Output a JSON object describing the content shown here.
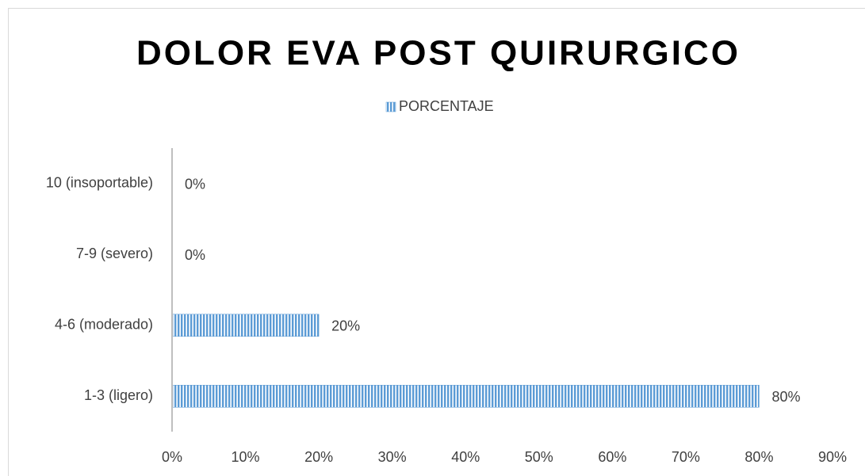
{
  "chart_data": {
    "type": "bar",
    "orientation": "horizontal",
    "title": "DOLOR EVA POST QUIRURGICO",
    "categories": [
      "1-3 (ligero)",
      "4-6 (moderado)",
      "7-9 (severo)",
      "10 (insoportable)"
    ],
    "series": [
      {
        "name": "PORCENTAJE",
        "color": "#5b9bd5",
        "values": [
          80,
          20,
          0,
          0
        ],
        "value_labels": [
          "80%",
          "20%",
          "0%",
          "0%"
        ]
      }
    ],
    "xlim": [
      0,
      90
    ],
    "xticks": [
      {
        "value": 0,
        "label": "0%"
      },
      {
        "value": 10,
        "label": "10%"
      },
      {
        "value": 20,
        "label": "20%"
      },
      {
        "value": 30,
        "label": "30%"
      },
      {
        "value": 40,
        "label": "40%"
      },
      {
        "value": 50,
        "label": "50%"
      },
      {
        "value": 60,
        "label": "60%"
      },
      {
        "value": 70,
        "label": "70%"
      },
      {
        "value": 80,
        "label": "80%"
      },
      {
        "value": 90,
        "label": "90%"
      }
    ],
    "grid": false,
    "legend": "top"
  }
}
